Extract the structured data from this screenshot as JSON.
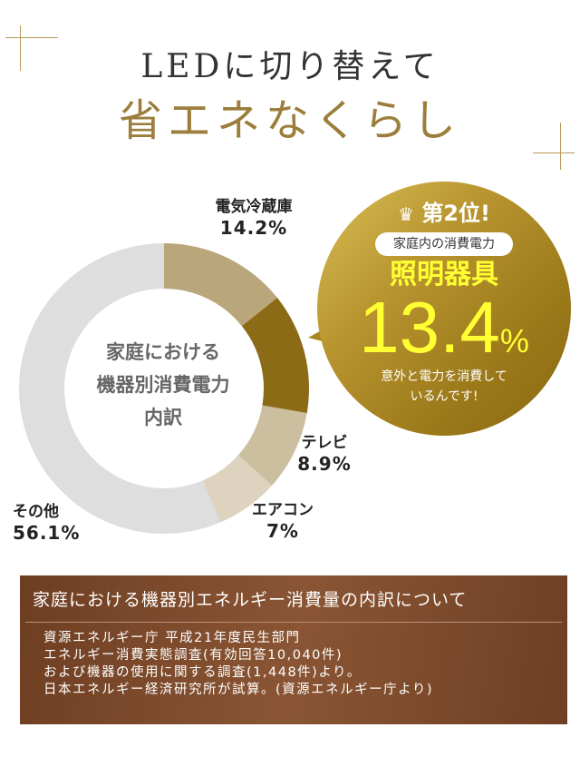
{
  "header": {
    "line1": "LEDに切り替えて",
    "line2": "省エネなくらし"
  },
  "chart_data": {
    "type": "pie",
    "title": "家庭における機器別消費電力内訳",
    "categories": [
      "電気冷蔵庫",
      "照明器具",
      "テレビ",
      "エアコン",
      "その他"
    ],
    "values": [
      14.2,
      13.4,
      8.9,
      7,
      56.1
    ],
    "labels": [
      "14.2%",
      "13.4%",
      "8.9%",
      "7%",
      "56.1%"
    ],
    "colors": [
      "#b9a67b",
      "#8c6b17",
      "#cbbf9f",
      "#ddd3bf",
      "#dedede"
    ],
    "start": "12 o'clock clockwise"
  },
  "center_text": [
    "家庭における",
    "機器別消費電力",
    "内訳"
  ],
  "callout": {
    "rank": "第2位!",
    "subtitle": "家庭内の消費電力",
    "item": "照明器具",
    "value": "13.4",
    "unit": "%",
    "message": [
      "意外と電力を消費して",
      "いるんです!"
    ]
  },
  "note": {
    "title": "家庭における機器別エネルギー消費量の内訳について",
    "lines": [
      "資源エネルギー庁 平成21年度民生部門",
      "エネルギー消費実態調査(有効回答10,040件)",
      "および機器の使用に関する調査(1,448件)より。",
      "日本エネルギー経済研究所が試算。(資源エネルギー庁より)"
    ]
  }
}
